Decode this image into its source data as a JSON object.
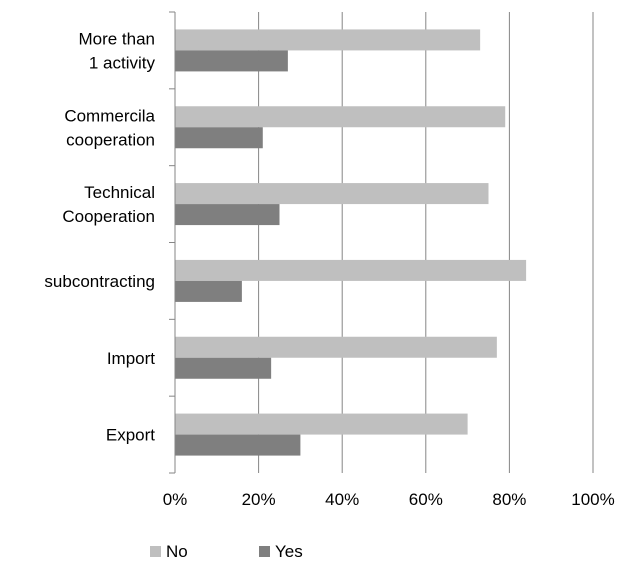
{
  "chart_data": {
    "type": "bar",
    "orientation": "horizontal",
    "categories": [
      "Export",
      "Import",
      "subcontracting",
      "Technical Cooperation",
      "Commercila cooperation",
      "More than 1 activity"
    ],
    "category_label_lines": [
      [
        "Export"
      ],
      [
        "Import"
      ],
      [
        "subcontracting"
      ],
      [
        "Technical",
        "Cooperation"
      ],
      [
        "Commercila",
        "cooperation"
      ],
      [
        "More than",
        "1 activity"
      ]
    ],
    "series": [
      {
        "name": "No",
        "values": [
          70,
          77,
          84,
          75,
          79,
          73
        ],
        "color": "#bfbfbf"
      },
      {
        "name": "Yes",
        "values": [
          30,
          23,
          16,
          25,
          21,
          27
        ],
        "color": "#7f7f7f"
      }
    ],
    "xlim": [
      0,
      100
    ],
    "xticks": [
      0,
      20,
      40,
      60,
      80,
      100
    ],
    "xtick_labels": [
      "0%",
      "20%",
      "40%",
      "60%",
      "80%",
      "100%"
    ],
    "grid": "vertical",
    "legend": "bottom",
    "title": "",
    "xlabel": "",
    "ylabel": ""
  }
}
